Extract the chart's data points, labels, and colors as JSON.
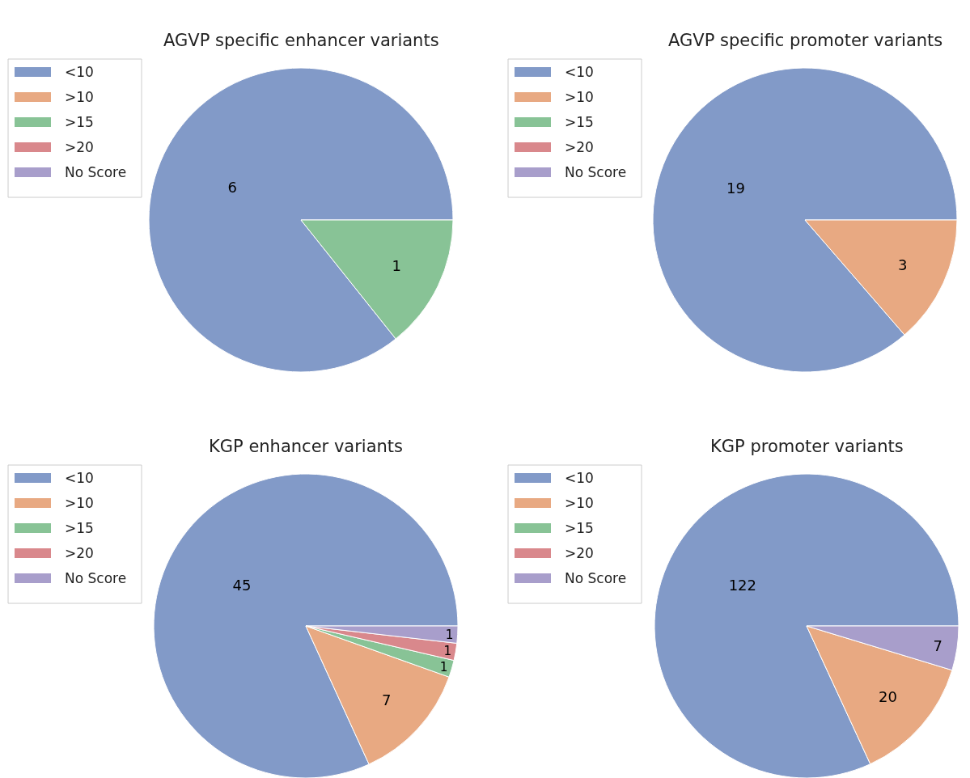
{
  "chart_data": [
    {
      "type": "pie",
      "title": "AGVP specific enhancer variants",
      "categories": [
        "<10",
        ">10",
        ">15",
        ">20",
        "No Score"
      ],
      "values": [
        6,
        0,
        1,
        0,
        0
      ],
      "value_labels": [
        "6",
        null,
        "1",
        null,
        null
      ],
      "colors": [
        "#829ac8",
        "#e8a982",
        "#88c396",
        "#d9888c",
        "#a89ecb"
      ],
      "legend": "top left"
    },
    {
      "type": "pie",
      "title": "AGVP specific promoter variants",
      "categories": [
        "<10",
        ">10",
        ">15",
        ">20",
        "No Score"
      ],
      "values": [
        19,
        3,
        0,
        0,
        0
      ],
      "value_labels": [
        "19",
        "3",
        null,
        null,
        null
      ],
      "colors": [
        "#829ac8",
        "#e8a982",
        "#88c396",
        "#d9888c",
        "#a89ecb"
      ],
      "legend": "top left"
    },
    {
      "type": "pie",
      "title": "KGP enhancer variants",
      "categories": [
        "<10",
        ">10",
        ">15",
        ">20",
        "No Score"
      ],
      "values": [
        45,
        7,
        1,
        1,
        1
      ],
      "value_labels": [
        "45",
        "7",
        "1",
        "1",
        "1"
      ],
      "colors": [
        "#829ac8",
        "#e8a982",
        "#88c396",
        "#d9888c",
        "#a89ecb"
      ],
      "legend": "top left"
    },
    {
      "type": "pie",
      "title": "KGP promoter variants",
      "categories": [
        "<10",
        ">10",
        ">15",
        ">20",
        "No Score"
      ],
      "values": [
        122,
        20,
        0,
        0,
        7
      ],
      "value_labels": [
        "122",
        "20",
        null,
        null,
        "7"
      ],
      "colors": [
        "#829ac8",
        "#e8a982",
        "#88c396",
        "#d9888c",
        "#a89ecb"
      ],
      "legend": "top left"
    }
  ]
}
